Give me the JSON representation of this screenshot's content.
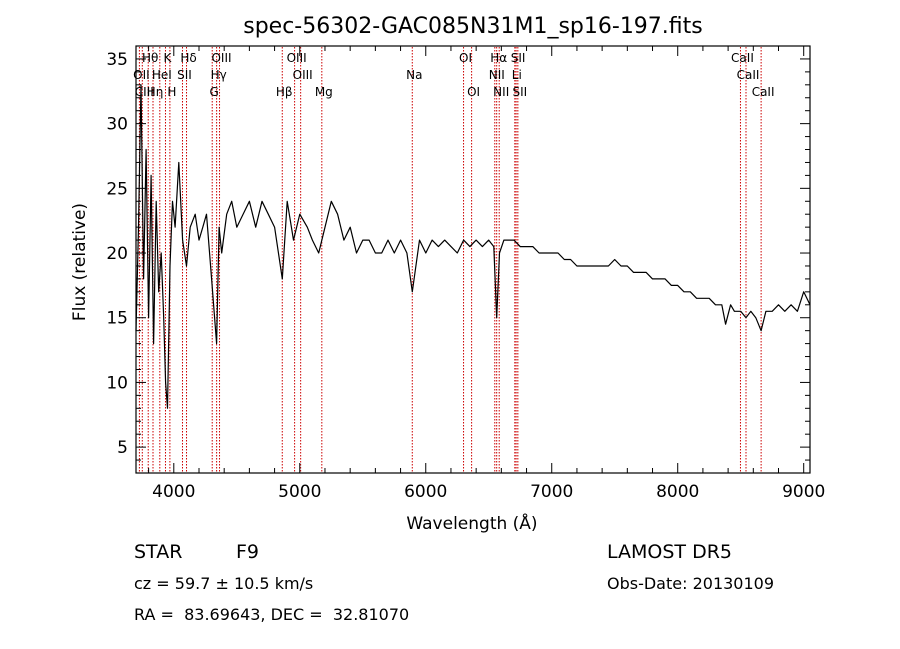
{
  "chart_data": {
    "type": "line",
    "title": "spec-56302-GAC085N31M1_sp16-197.fits",
    "xlabel": "Wavelength (Å)",
    "ylabel": "Flux (relative)",
    "xlim": [
      3700,
      9050
    ],
    "ylim": [
      3,
      36
    ],
    "xticks": [
      4000,
      5000,
      6000,
      7000,
      8000,
      9000
    ],
    "yticks": [
      5,
      10,
      15,
      20,
      25,
      30,
      35
    ],
    "spectrum": {
      "x": [
        3700,
        3720,
        3740,
        3760,
        3780,
        3800,
        3820,
        3840,
        3860,
        3880,
        3900,
        3920,
        3935,
        3950,
        3970,
        3990,
        4010,
        4040,
        4070,
        4101,
        4130,
        4170,
        4200,
        4230,
        4260,
        4300,
        4340,
        4360,
        4380,
        4420,
        4460,
        4500,
        4550,
        4600,
        4650,
        4700,
        4750,
        4800,
        4861,
        4900,
        4950,
        5000,
        5060,
        5100,
        5150,
        5200,
        5250,
        5300,
        5350,
        5400,
        5450,
        5500,
        5550,
        5600,
        5650,
        5700,
        5750,
        5800,
        5850,
        5893,
        5950,
        6000,
        6050,
        6100,
        6150,
        6200,
        6250,
        6300,
        6350,
        6400,
        6450,
        6500,
        6540,
        6563,
        6585,
        6620,
        6650,
        6700,
        6750,
        6800,
        6850,
        6900,
        6950,
        7000,
        7050,
        7100,
        7150,
        7200,
        7250,
        7300,
        7350,
        7400,
        7450,
        7500,
        7550,
        7600,
        7650,
        7700,
        7750,
        7800,
        7850,
        7900,
        7950,
        8000,
        8050,
        8100,
        8150,
        8200,
        8250,
        8300,
        8350,
        8380,
        8420,
        8450,
        8500,
        8542,
        8580,
        8620,
        8662,
        8700,
        8750,
        8800,
        8850,
        8900,
        8950,
        9000,
        9050
      ],
      "y": [
        14,
        22,
        33,
        18,
        28,
        15,
        26,
        13,
        24,
        17,
        20,
        15,
        10,
        8,
        19,
        24,
        22,
        27,
        21,
        19,
        22,
        23,
        21,
        22,
        23,
        18,
        13,
        22,
        20,
        23,
        24,
        22,
        23,
        24,
        22,
        24,
        23,
        22,
        18,
        24,
        21,
        23,
        22,
        21,
        20,
        22,
        24,
        23,
        21,
        22,
        20,
        21,
        21,
        20,
        20,
        21,
        20,
        21,
        20,
        17,
        21,
        20,
        21,
        20.5,
        21,
        20.5,
        20,
        21,
        20.5,
        21,
        20.5,
        21,
        20.5,
        15,
        20,
        21,
        21,
        21,
        20.5,
        20.5,
        20.5,
        20,
        20,
        20,
        20,
        19.5,
        19.5,
        19,
        19,
        19,
        19,
        19,
        19,
        19.5,
        19,
        19,
        18.5,
        18.5,
        18.5,
        18,
        18,
        18,
        17.5,
        17.5,
        17,
        17,
        16.5,
        16.5,
        16.5,
        16,
        16,
        14.5,
        16,
        15.5,
        15.5,
        15,
        15.5,
        15,
        14,
        15.5,
        15.5,
        16,
        15.5,
        16,
        15.5,
        17,
        16
      ]
    },
    "line_marks": [
      {
        "label": "Hθ",
        "x": 3797,
        "row": 1
      },
      {
        "label": "K",
        "x": 3934,
        "row": 1
      },
      {
        "label": "Hδ",
        "x": 4101,
        "row": 1
      },
      {
        "label": "OIII",
        "x": 4363,
        "row": 1
      },
      {
        "label": "OIII",
        "x": 4959,
        "row": 1
      },
      {
        "label": "OI",
        "x": 6300,
        "row": 1
      },
      {
        "label": "Hα",
        "x": 6563,
        "row": 1
      },
      {
        "label": "SII",
        "x": 6717,
        "row": 1
      },
      {
        "label": "CaII",
        "x": 8498,
        "row": 1
      },
      {
        "label": "OII",
        "x": 3727,
        "row": 2
      },
      {
        "label": "HeI",
        "x": 3889,
        "row": 2
      },
      {
        "label": "SII",
        "x": 4069,
        "row": 2
      },
      {
        "label": "Hγ",
        "x": 4340,
        "row": 2
      },
      {
        "label": "OIII",
        "x": 5007,
        "row": 2
      },
      {
        "label": "Na",
        "x": 5893,
        "row": 2
      },
      {
        "label": "NII",
        "x": 6548,
        "row": 2
      },
      {
        "label": "Li",
        "x": 6707,
        "row": 2
      },
      {
        "label": "CaII",
        "x": 8542,
        "row": 2
      },
      {
        "label": "CIII",
        "x": 3750,
        "row": 3
      },
      {
        "label": "Hη",
        "x": 3835,
        "row": 3
      },
      {
        "label": "H",
        "x": 3969,
        "row": 3
      },
      {
        "label": "G",
        "x": 4305,
        "row": 3
      },
      {
        "label": "Hβ",
        "x": 4861,
        "row": 3
      },
      {
        "label": "Mg",
        "x": 5175,
        "row": 3
      },
      {
        "label": "OI",
        "x": 6364,
        "row": 3
      },
      {
        "label": "NII",
        "x": 6583,
        "row": 3
      },
      {
        "label": "SII",
        "x": 6731,
        "row": 3
      },
      {
        "label": "CaII",
        "x": 8662,
        "row": 3
      }
    ],
    "line_mark_color": "#cc0000"
  },
  "info": {
    "object_class": "STAR",
    "subclass": "F9",
    "survey": "LAMOST DR5",
    "cz": "cz = 59.7 ± 10.5 km/s",
    "obs_date": "Obs-Date: 20130109",
    "coords": "RA =  83.69643, DEC =  32.81070"
  }
}
